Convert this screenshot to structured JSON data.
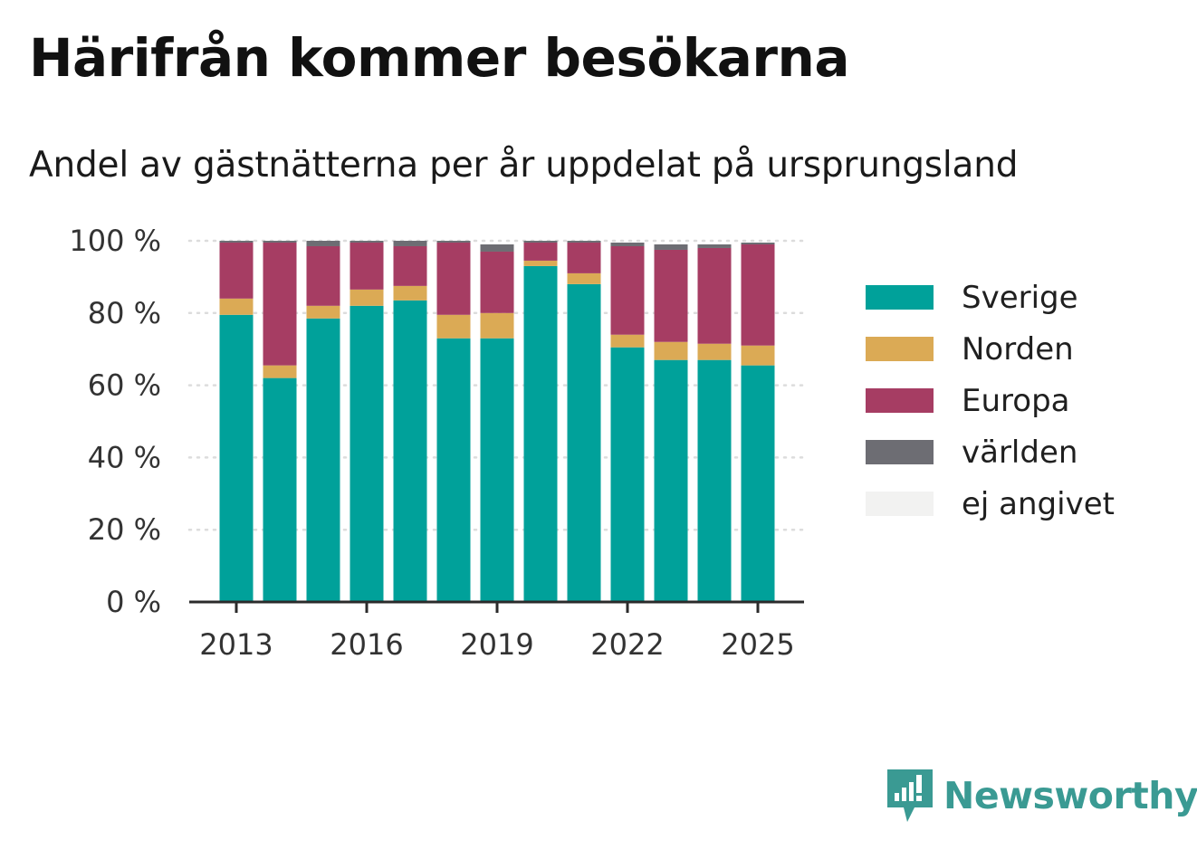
{
  "title": "Härifrån kommer besökarna",
  "subtitle": "Andel av gästnätterna per år uppdelat på ursprungsland",
  "brand": {
    "name": "Newsworthy",
    "color": "#3a9a93"
  },
  "chart_data": {
    "type": "bar",
    "stacked": true,
    "x": [
      2013,
      2014,
      2015,
      2016,
      2017,
      2018,
      2019,
      2020,
      2021,
      2022,
      2023,
      2024,
      2025
    ],
    "x_tick_labels": [
      "2013",
      "2016",
      "2019",
      "2022",
      "2025"
    ],
    "y_tick_labels": [
      "0 %",
      "20 %",
      "40 %",
      "60 %",
      "80 %",
      "100 %"
    ],
    "ylim": [
      0,
      100
    ],
    "grid": true,
    "legend_position": "right",
    "series": [
      {
        "name": "Sverige",
        "color": "#00a19a",
        "values": [
          79.5,
          62,
          78.5,
          82,
          83.5,
          73,
          73,
          93,
          88,
          70.5,
          67,
          67,
          65.5
        ]
      },
      {
        "name": "Norden",
        "color": "#dbaa55",
        "values": [
          4.5,
          3.5,
          3.5,
          4.5,
          4,
          6.5,
          7,
          1.5,
          3,
          3.5,
          5,
          4.5,
          5.5
        ]
      },
      {
        "name": "Europa",
        "color": "#a63d63",
        "values": [
          15.5,
          34,
          16.5,
          13,
          11,
          20,
          17,
          5,
          8.5,
          24.5,
          25.5,
          26.5,
          28
        ]
      },
      {
        "name": "världen",
        "color": "#6d6d73",
        "values": [
          0.5,
          0.5,
          1.5,
          0.5,
          1.5,
          0.5,
          2,
          0.5,
          0.5,
          1,
          1.5,
          1,
          0.5
        ]
      },
      {
        "name": "ej angivet",
        "color": "#f2f2f1",
        "values": [
          0,
          0,
          0,
          0,
          0,
          0,
          0,
          0,
          0,
          0,
          0,
          0,
          0
        ]
      }
    ]
  }
}
